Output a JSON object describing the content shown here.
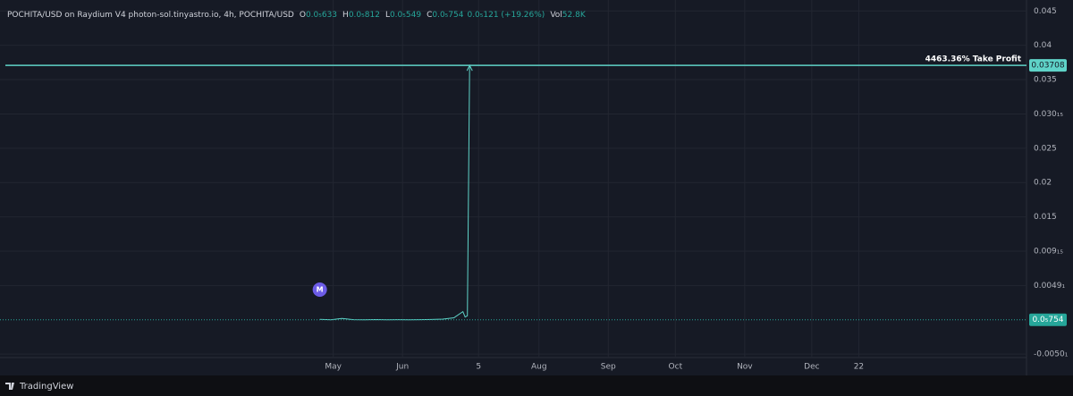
{
  "chart_data": {
    "type": "line",
    "title": "POCHITA/USD on Raydium V4 photon-sol.tinyastro.io, 4h, POCHITA/USD",
    "ohlc": [
      {
        "label": "O",
        "value": "0.0₅633"
      },
      {
        "label": "H",
        "value": "0.0₅812"
      },
      {
        "label": "L",
        "value": "0.0₅549"
      },
      {
        "label": "C",
        "value": "0.0₅754"
      }
    ],
    "change": "0.0₅121 (+19.26%)",
    "volume": {
      "label": "Vol",
      "value": "52.8K"
    },
    "x": [
      115,
      120,
      125,
      130,
      135,
      140,
      145,
      150,
      155,
      160,
      165,
      170,
      175,
      179,
      180,
      181,
      182
    ],
    "series": [
      {
        "name": "POCHITA/USD",
        "color": "#5fd3c8",
        "values": [
          8e-05,
          1e-05,
          0.0002,
          2e-05,
          1e-05,
          3e-05,
          1e-05,
          2e-05,
          1e-05,
          2e-05,
          5e-05,
          0.0001,
          0.0003,
          0.0012,
          0.0004,
          0.0006,
          0.03708
        ]
      }
    ],
    "xlim": [
      -28,
      431
    ],
    "xticks": [
      {
        "value": 121,
        "label": "May"
      },
      {
        "value": 152,
        "label": "Jun"
      },
      {
        "value": 186,
        "label": "5"
      },
      {
        "value": 213,
        "label": "Aug"
      },
      {
        "value": 244,
        "label": "Sep"
      },
      {
        "value": 274,
        "label": "Oct"
      },
      {
        "value": 305,
        "label": "Nov"
      },
      {
        "value": 335,
        "label": "Dec"
      },
      {
        "value": 356,
        "label": "22"
      }
    ],
    "ylim": [
      -0.0055,
      0.0466
    ],
    "yticks": [
      0.045,
      0.04,
      0.035,
      {
        "value": 0.03,
        "label": "0.030₁₅"
      },
      0.025,
      0.02,
      0.015,
      {
        "value": 0.01,
        "label": "0.009₁₅"
      },
      {
        "value": 0.005,
        "label": "0.0049₁"
      },
      {
        "value": -0.005,
        "label": "-0.0050₁"
      }
    ],
    "grid": true,
    "take_profit": {
      "value": 0.03708,
      "label": "4463.36% Take Profit",
      "color": "#5fd3c8"
    },
    "current_price": {
      "value": 7.54e-06,
      "label": "0.0₅754",
      "color": "#26a69a"
    },
    "marker": {
      "label": "M",
      "x": 115,
      "color": "#6c5ce7"
    },
    "brand": "TradingView"
  }
}
